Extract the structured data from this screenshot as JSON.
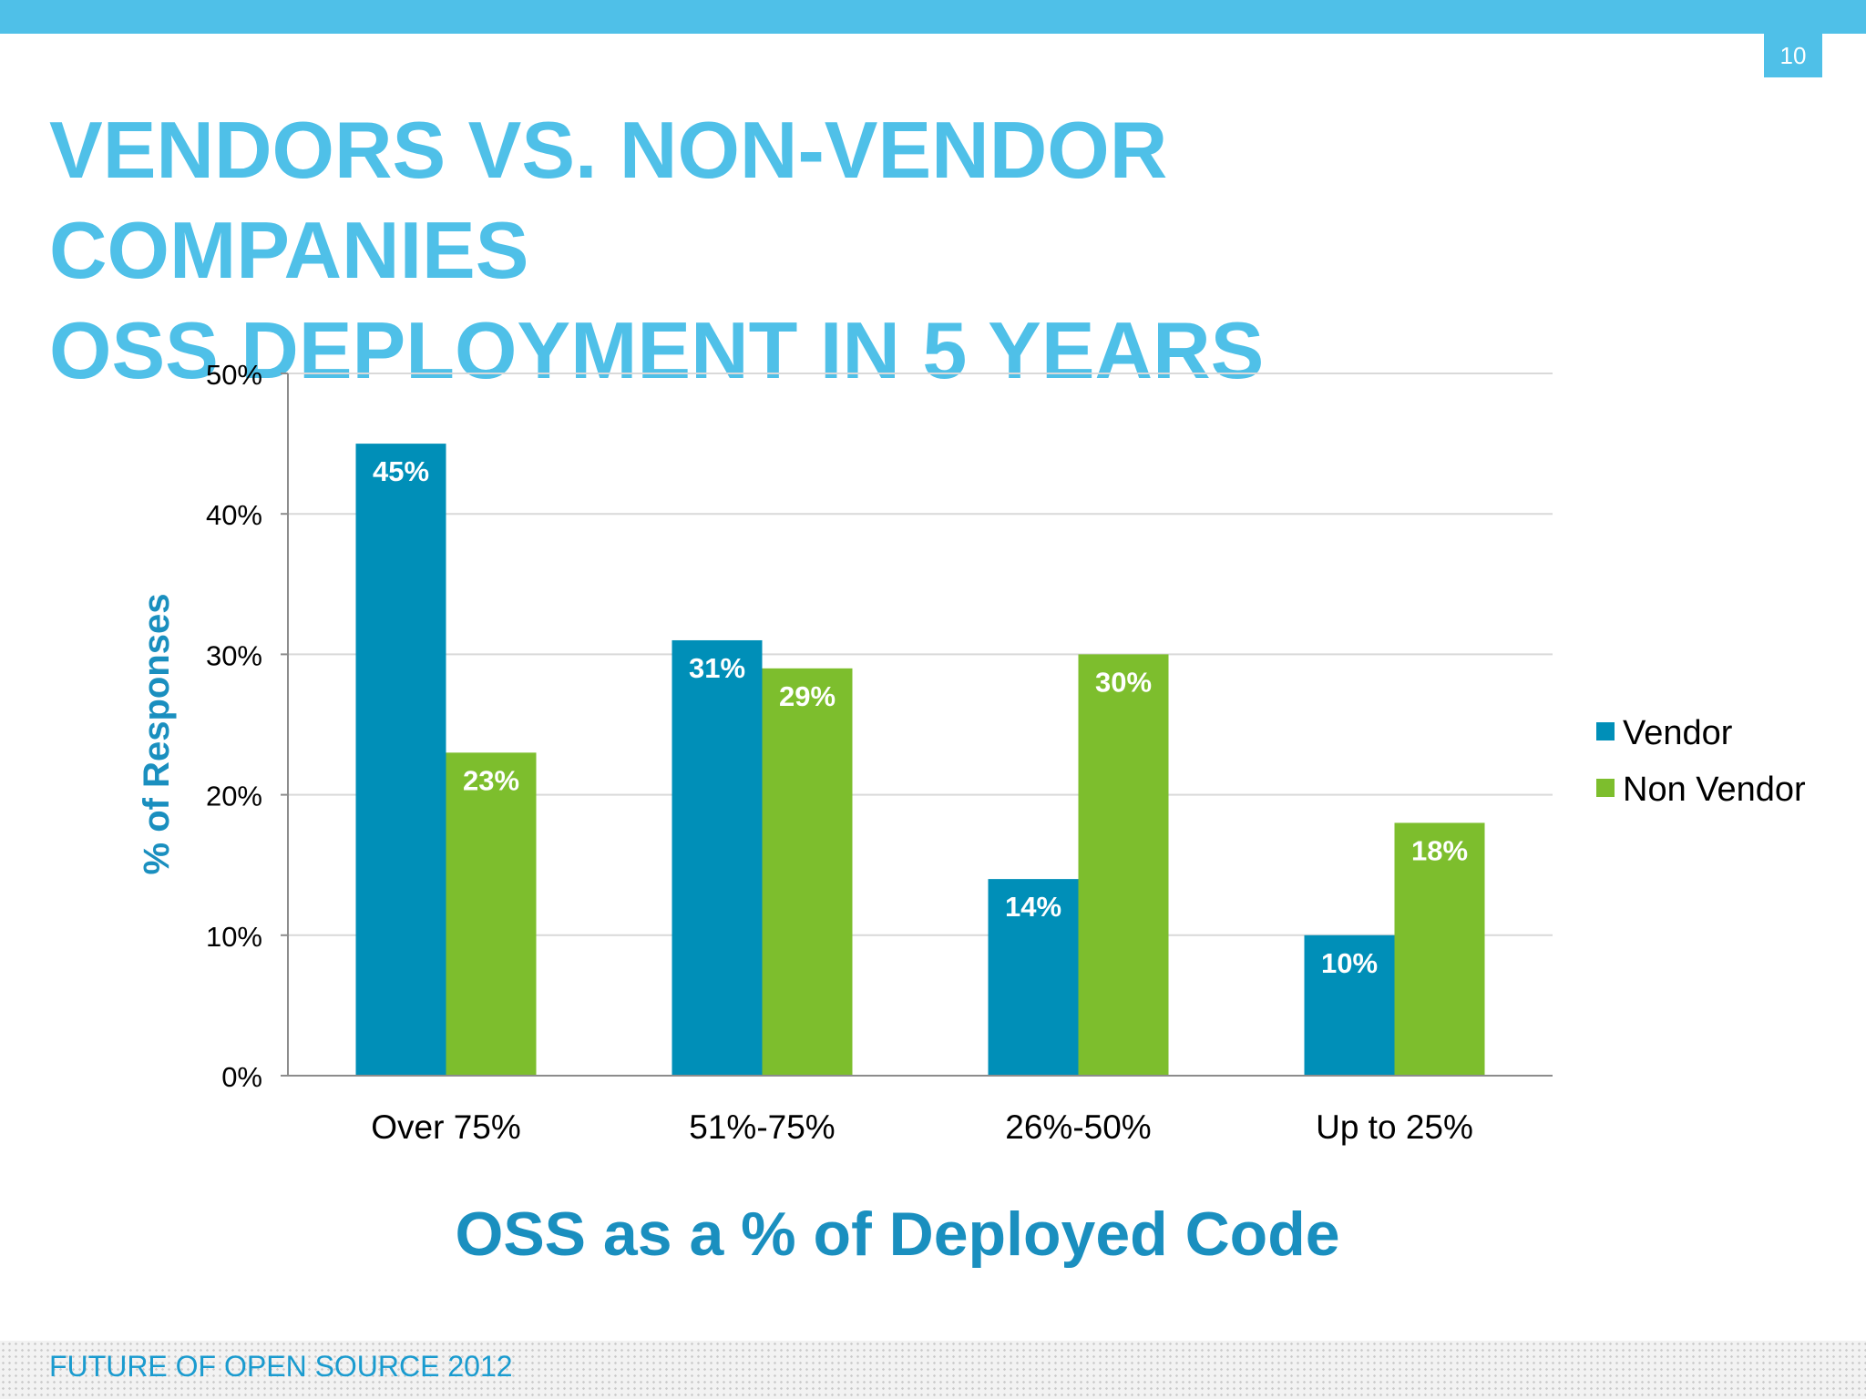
{
  "page": {
    "number": "10",
    "footer": "FUTURE OF OPEN SOURCE 2012"
  },
  "slide": {
    "title_lines": [
      "VENDORS VS. NON-VENDOR",
      "COMPANIES",
      "OSS DEPLOYMENT IN 5 YEARS"
    ]
  },
  "colors": {
    "accent": "#4FC0E8",
    "vendor": "#008FB8",
    "non_vendor": "#7DBE2D",
    "axis_title": "#1A8FBF"
  },
  "chart_data": {
    "type": "bar",
    "xlabel": "OSS as a % of Deployed Code",
    "ylabel": "% of Responses",
    "categories": [
      "Over 75%",
      "51%-75%",
      "26%-50%",
      "Up to 25%"
    ],
    "series": [
      {
        "name": "Vendor",
        "values": [
          45,
          31,
          14,
          10
        ],
        "labels": [
          "45%",
          "31%",
          "14%",
          "10%"
        ]
      },
      {
        "name": "Non Vendor",
        "values": [
          23,
          29,
          30,
          18
        ],
        "labels": [
          "23%",
          "29%",
          "30%",
          "18%"
        ]
      }
    ],
    "ylim": [
      0,
      50
    ],
    "yticks": [
      0,
      10,
      20,
      30,
      40,
      50
    ],
    "ytick_labels": [
      "0%",
      "10%",
      "20%",
      "30%",
      "40%",
      "50%"
    ],
    "grid": true,
    "legend": "right"
  }
}
